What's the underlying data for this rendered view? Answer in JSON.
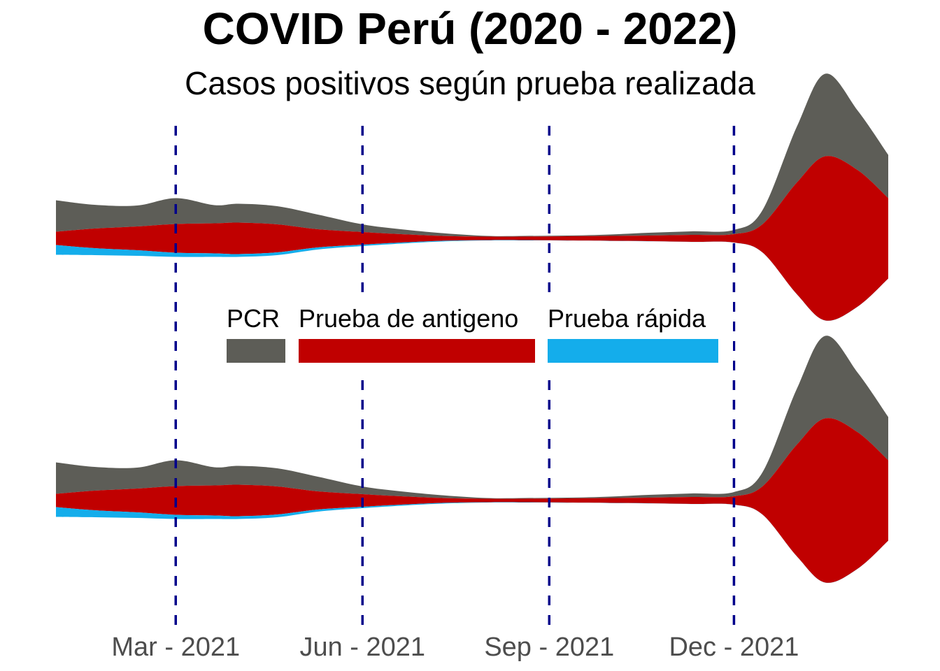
{
  "chart_data": {
    "type": "area",
    "subtype": "streamgraph",
    "title": "COVID Perú (2020 - 2022)",
    "subtitle": "Casos positivos según prueba realizada",
    "xlabel": "",
    "ylabel": "",
    "grid": false,
    "legend_placement": "center",
    "x_tick_labels": [
      "Mar - 2021",
      "Jun - 2021",
      "Sep - 2021",
      "Dec - 2021"
    ],
    "x_ticks": [
      "2021-03-01",
      "2021-06-01",
      "2021-09-01",
      "2021-12-01"
    ],
    "xlim": [
      "2021-01-01",
      "2022-02-15"
    ],
    "reference_lines": {
      "style": "dashed",
      "color": "#00008B",
      "at": [
        "2021-03-01",
        "2021-06-01",
        "2021-09-01",
        "2021-12-01"
      ]
    },
    "x": [
      "2021-01-01",
      "2021-01-20",
      "2021-02-10",
      "2021-03-01",
      "2021-03-20",
      "2021-04-01",
      "2021-04-20",
      "2021-05-10",
      "2021-06-01",
      "2021-06-20",
      "2021-07-10",
      "2021-08-01",
      "2021-08-20",
      "2021-09-10",
      "2021-10-01",
      "2021-10-20",
      "2021-11-10",
      "2021-12-01",
      "2021-12-15",
      "2022-01-01",
      "2022-01-15",
      "2022-01-31",
      "2022-02-15"
    ],
    "series": [
      {
        "name": "PCR",
        "color": "#5D5D57",
        "values": [
          45,
          34,
          30,
          37,
          26,
          27,
          26,
          21,
          11,
          7,
          4,
          1,
          1,
          1,
          2,
          4,
          5,
          6,
          20,
          80,
          118,
          85,
          62
        ]
      },
      {
        "name": "Prueba de antigeno",
        "color": "#C00000",
        "values": [
          19,
          28,
          34,
          41,
          43,
          45,
          40,
          26,
          18,
          12,
          7,
          5,
          5,
          6,
          7,
          8,
          10,
          12,
          40,
          160,
          235,
          195,
          115
        ]
      },
      {
        "name": "Prueba rápida",
        "color": "#14ADEB",
        "values": [
          14,
          10,
          8,
          6,
          5,
          4,
          4,
          3,
          2,
          1.5,
          1,
          0.5,
          0.5,
          0.3,
          0.2,
          0.2,
          0.1,
          0.1,
          0.1,
          0.1,
          0.1,
          0.1,
          0.1
        ]
      }
    ],
    "panels": 2
  }
}
